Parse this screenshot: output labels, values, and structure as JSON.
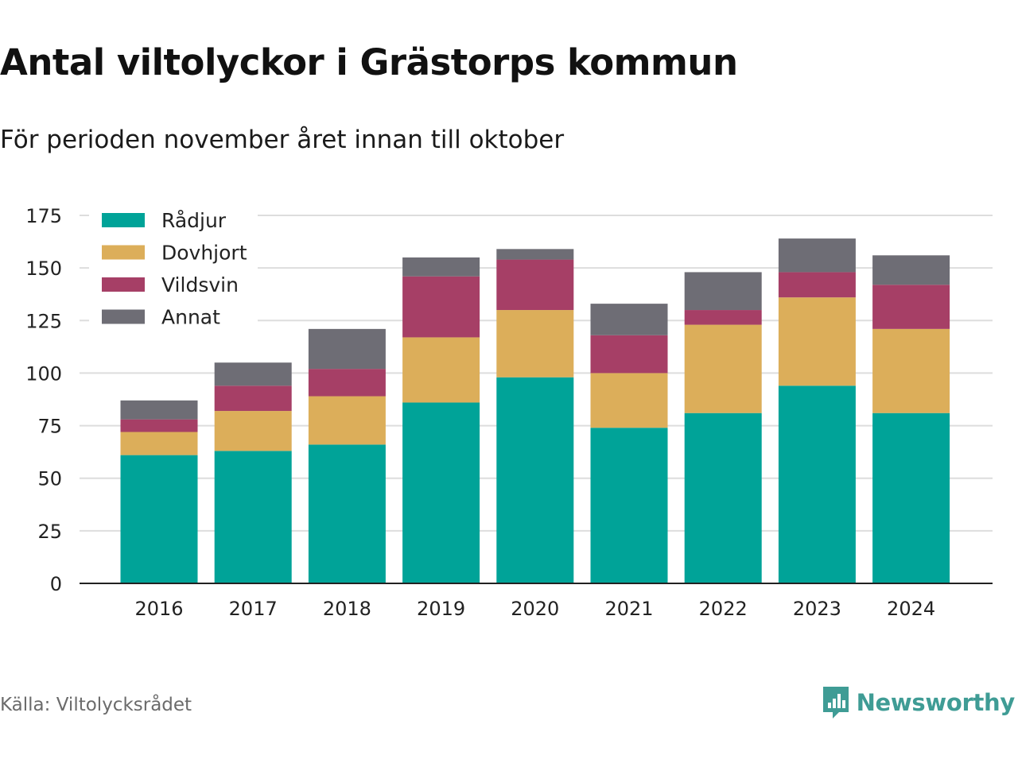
{
  "title": "Antal viltolyckor i Grästorps kommun",
  "subtitle": "För perioden november året innan till oktober",
  "source": "Källa: Viltolycksrådet",
  "brand": {
    "name": "Newsworthy",
    "icon": "newsworthy-logo-icon",
    "color": "#3f9c95"
  },
  "chart_data": {
    "type": "bar",
    "stacked": true,
    "categories": [
      "2016",
      "2017",
      "2018",
      "2019",
      "2020",
      "2021",
      "2022",
      "2023",
      "2024"
    ],
    "series": [
      {
        "name": "Rådjur",
        "color": "#00a398",
        "values": [
          61,
          63,
          66,
          86,
          98,
          74,
          81,
          94,
          81
        ]
      },
      {
        "name": "Dovhjort",
        "color": "#dcae5a",
        "values": [
          11,
          19,
          23,
          31,
          32,
          26,
          42,
          42,
          40
        ]
      },
      {
        "name": "Vildsvin",
        "color": "#a63f66",
        "values": [
          6,
          12,
          13,
          29,
          24,
          18,
          7,
          12,
          21
        ]
      },
      {
        "name": "Annat",
        "color": "#6e6d75",
        "values": [
          9,
          11,
          19,
          9,
          5,
          15,
          18,
          16,
          14
        ]
      }
    ],
    "ylim": [
      0,
      175
    ],
    "yticks": [
      0,
      25,
      50,
      75,
      100,
      125,
      150,
      175
    ],
    "xlabel": "",
    "ylabel": "",
    "grid": true,
    "legend_position": "top-left"
  }
}
